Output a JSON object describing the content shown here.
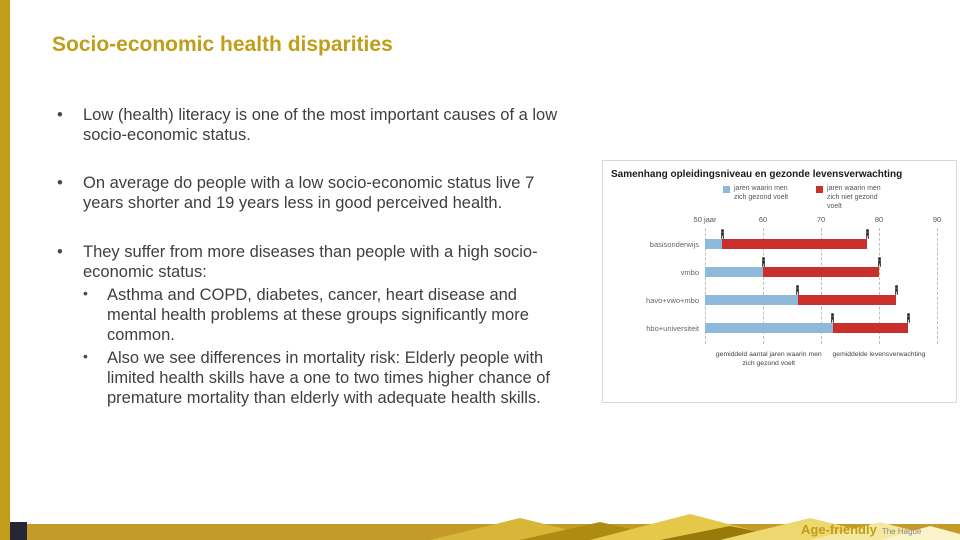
{
  "slide": {
    "title": "Socio-economic health disparities",
    "bullets": [
      {
        "text": "Low (health) literacy is one of the most important causes of a low socio-economic status.",
        "sub": []
      },
      {
        "text": "On average do people with a low socio-economic status live 7 years shorter and 19 years less in good perceived health.",
        "sub": []
      },
      {
        "text": "They suffer from more diseases than people with a high socio-economic status:",
        "sub": [
          "Asthma and COPD, diabetes, cancer, heart disease and mental health problems at these groups significantly more common.",
          "Also we see differences in mortality risk: Elderly people with limited health skills have a one to two times higher chance of premature mortality than elderly with adequate health skills."
        ]
      }
    ],
    "footer": {
      "brand": "Age-friendly",
      "suffix": "The Hague"
    }
  },
  "colors": {
    "accent_gold": "#C09E18",
    "body_text": "#3F3F3F",
    "bar_healthy_blue": "#8FB9DB",
    "bar_unhealthy_red": "#C9302C"
  },
  "chart_data": {
    "type": "bar",
    "orientation": "horizontal",
    "stacked": true,
    "title": "Samenhang opleidingsniveau en gezonde levensverwachting",
    "legend": [
      {
        "label": "jaren waarin men zich gezond voelt",
        "color": "#8FB9DB"
      },
      {
        "label": "jaren waarin men zich niet gezond voelt",
        "color": "#C9302C"
      }
    ],
    "legend_position": "top",
    "grid": "dashed-vertical",
    "xlim": [
      50,
      90
    ],
    "x_ticks": [
      {
        "label": "50 jaar",
        "value": 50
      },
      {
        "label": "60",
        "value": 60
      },
      {
        "label": "70",
        "value": 70
      },
      {
        "label": "80",
        "value": 80
      },
      {
        "label": "90",
        "value": 90
      }
    ],
    "rows": [
      {
        "label": "basisonderwijs",
        "healthy_life_expectancy": 53,
        "life_expectancy": 78
      },
      {
        "label": "vmbo",
        "healthy_life_expectancy": 60,
        "life_expectancy": 80
      },
      {
        "label": "havo+vwo+mbo",
        "healthy_life_expectancy": 66,
        "life_expectancy": 83
      },
      {
        "label": "hbo+universiteit",
        "healthy_life_expectancy": 72,
        "life_expectancy": 85
      }
    ],
    "annotations": [
      {
        "text": "gemiddeld aantal jaren waarin men zich gezond voelt",
        "anchor_value": 61
      },
      {
        "text": "gemiddelde levensverwachting",
        "anchor_value": 80
      }
    ]
  }
}
